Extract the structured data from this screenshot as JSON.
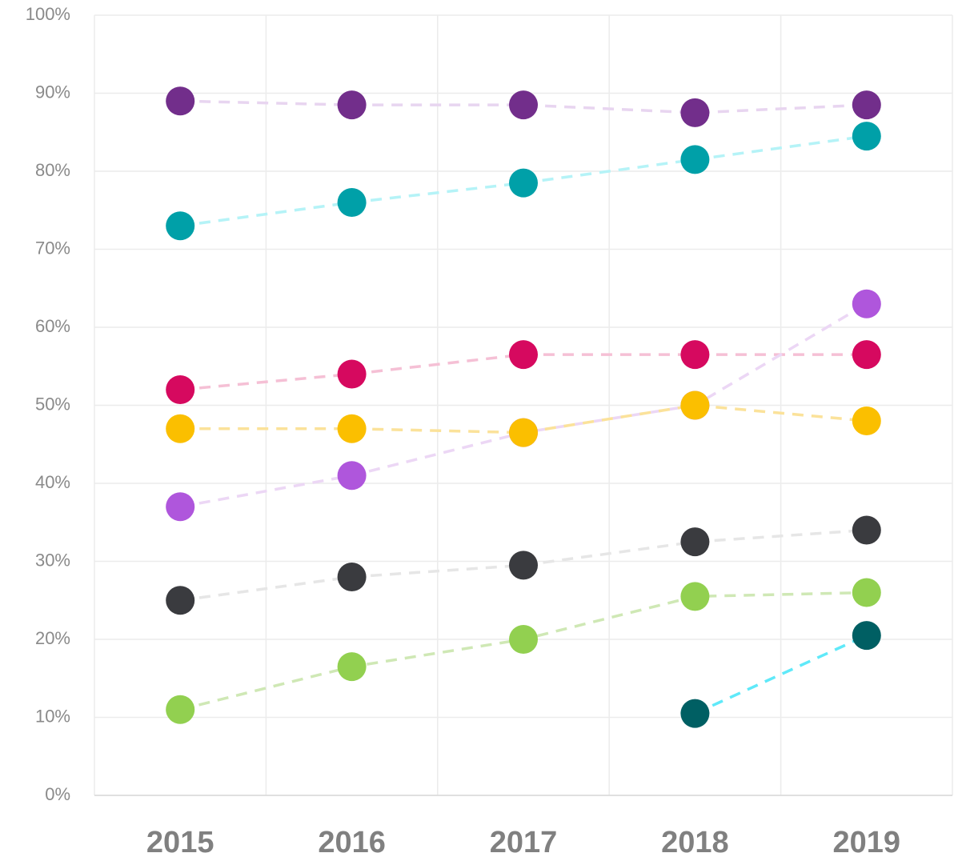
{
  "chart_data": {
    "type": "line",
    "categories": [
      "2015",
      "2016",
      "2017",
      "2018",
      "2019"
    ],
    "series": [
      {
        "color": "#722e8b",
        "line_color": "#e8d5f0",
        "values": [
          89,
          88.5,
          88.5,
          87.5,
          88.5
        ]
      },
      {
        "color": "#00a0a8",
        "line_color": "#b5f3f7",
        "values": [
          73,
          76,
          78.5,
          81.5,
          84.5
        ]
      },
      {
        "color": "#d6095f",
        "line_color": "#f5c0d5",
        "values": [
          52,
          54,
          56.5,
          56.5,
          56.5
        ]
      },
      {
        "color": "#af56dc",
        "line_color": "#ecd7f5",
        "values": [
          37,
          41,
          46.5,
          50,
          63
        ]
      },
      {
        "color": "#fbbf00",
        "line_color": "#fbe29a",
        "values": [
          47,
          47,
          46.5,
          50,
          48
        ]
      },
      {
        "color": "#3a3b3f",
        "line_color": "#e6e6e6",
        "values": [
          25,
          28,
          29.5,
          32.5,
          34
        ]
      },
      {
        "color": "#92d050",
        "line_color": "#cfe8b5",
        "values": [
          11,
          16.5,
          20,
          25.5,
          26
        ]
      },
      {
        "color": "#005f63",
        "line_color": "#5fe9f9",
        "values": [
          null,
          null,
          null,
          10.5,
          20.5
        ]
      }
    ],
    "ylim": [
      0,
      100
    ],
    "yticks": [
      {
        "value": 0,
        "label": "0%"
      },
      {
        "value": 10,
        "label": "10%"
      },
      {
        "value": 20,
        "label": "20%"
      },
      {
        "value": 30,
        "label": "30%"
      },
      {
        "value": 40,
        "label": "40%"
      },
      {
        "value": 50,
        "label": "50%"
      },
      {
        "value": 60,
        "label": "60%"
      },
      {
        "value": 70,
        "label": "70%"
      },
      {
        "value": 80,
        "label": "80%"
      },
      {
        "value": 90,
        "label": "90%"
      },
      {
        "value": 100,
        "label": "100%"
      }
    ],
    "grid": true
  }
}
